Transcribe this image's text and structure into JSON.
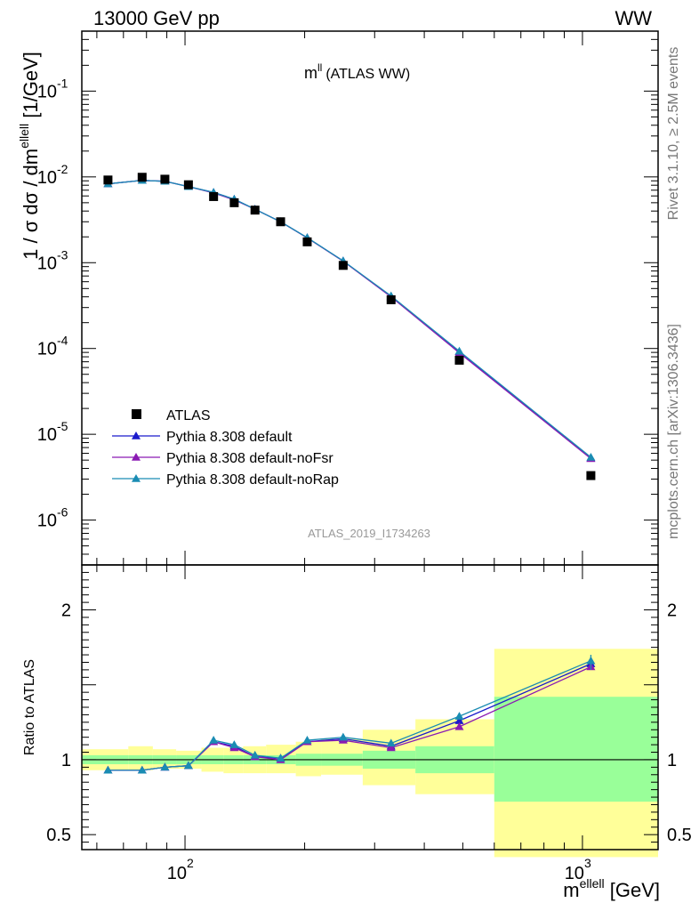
{
  "header": {
    "left": "13000 GeV pp",
    "right": "WW"
  },
  "side_text": {
    "rivet": "Rivet 3.1.10, ≥ 2.5M events",
    "mcplots": "mcplots.cern.ch [arXiv:1306.3436]"
  },
  "analysis_id": "ATLAS_2019_I1734263",
  "colors": {
    "data": "#000000",
    "default": "#1a1acc",
    "noFsr": "#8a1ab3",
    "noRap": "#1a8cb3",
    "band_inner": "#99ff99",
    "band_outer": "#ffff99"
  },
  "chart_data": [
    {
      "type": "scatter",
      "panel": "main",
      "title": "m^ll (ATLAS WW)",
      "title_main": "m",
      "title_sup": "ll",
      "title_rest": "(ATLAS WW)",
      "ylabel": "1 / σ  dσ / dm^{elleℓℓ} [1/GeV]",
      "ylabel_parts": {
        "a": "1 / σ  dσ / dm",
        "sup": "ellell",
        "b": " [1/GeV]"
      },
      "xscale": "log",
      "yscale": "log",
      "xlim": [
        55,
        1550
      ],
      "ylim": [
        3e-07,
        0.5
      ],
      "y_ticks": [
        {
          "value": 1e-06,
          "base": "10",
          "exp": "-6"
        },
        {
          "value": 1e-05,
          "base": "10",
          "exp": "-5"
        },
        {
          "value": 0.0001,
          "base": "10",
          "exp": "-4"
        },
        {
          "value": 0.001,
          "base": "10",
          "exp": "-3"
        },
        {
          "value": 0.01,
          "base": "10",
          "exp": "-2"
        },
        {
          "value": 0.1,
          "base": "10",
          "exp": "-1"
        }
      ],
      "x": [
        64,
        78,
        89,
        102,
        118,
        133,
        150,
        174,
        203,
        250,
        330,
        490,
        1050
      ],
      "series": [
        {
          "name": "ATLAS",
          "marker": "square",
          "values": [
            0.0092,
            0.0099,
            0.0094,
            0.0081,
            0.0059,
            0.005,
            0.0041,
            0.003,
            0.00175,
            0.00093,
            0.00037,
            7.3e-05,
            3.3e-06
          ]
        },
        {
          "name": "Pythia 8.308 default",
          "marker": "triangle",
          "values": [
            0.0083,
            0.0091,
            0.0089,
            0.0077,
            0.0066,
            0.0055,
            0.0042,
            0.003,
            0.00195,
            0.00105,
            0.0004,
            9.2e-05,
            5.3e-06
          ]
        },
        {
          "name": "Pythia 8.308 default-noFsr",
          "marker": "triangle",
          "values": [
            0.0083,
            0.0091,
            0.0089,
            0.0077,
            0.0065,
            0.0054,
            0.0042,
            0.003,
            0.00195,
            0.00104,
            0.0004,
            8.9e-05,
            5.2e-06
          ]
        },
        {
          "name": "Pythia 8.308 default-noRap",
          "marker": "triangle",
          "values": [
            0.0083,
            0.0091,
            0.0089,
            0.0077,
            0.0066,
            0.0055,
            0.0042,
            0.003,
            0.00196,
            0.00105,
            0.00041,
            9.3e-05,
            5.4e-06
          ]
        }
      ],
      "legend": "top-left, lower-left region"
    },
    {
      "type": "line",
      "panel": "ratio",
      "ylabel": "Ratio to ATLAS",
      "xlabel": "m^{elleℓℓ} [GeV]",
      "xlabel_parts": {
        "a": "m",
        "sup": "ellell",
        "b": " [GeV]"
      },
      "xscale": "log",
      "xlim": [
        55,
        1550
      ],
      "ylim": [
        0.4,
        2.3
      ],
      "y_ticks": [
        {
          "value": 0.5,
          "label": "0.5"
        },
        {
          "value": 1,
          "label": "1"
        },
        {
          "value": 2,
          "label": "2"
        }
      ],
      "x_ticks": [
        {
          "value": 100,
          "base": "10",
          "exp": "2"
        },
        {
          "value": 1000,
          "base": "10",
          "exp": "3"
        }
      ],
      "x": [
        64,
        78,
        89,
        102,
        118,
        133,
        150,
        174,
        203,
        250,
        330,
        490,
        1050
      ],
      "series": [
        {
          "name": "Pythia 8.308 default",
          "values": [
            0.93,
            0.93,
            0.95,
            0.96,
            1.12,
            1.09,
            1.02,
            1.01,
            1.12,
            1.14,
            1.09,
            1.26,
            1.64
          ]
        },
        {
          "name": "Pythia 8.308 default-noFsr",
          "values": [
            0.93,
            0.93,
            0.95,
            0.96,
            1.12,
            1.08,
            1.02,
            1.0,
            1.12,
            1.13,
            1.08,
            1.22,
            1.62
          ]
        },
        {
          "name": "Pythia 8.308 default-noRap",
          "values": [
            0.93,
            0.93,
            0.95,
            0.96,
            1.13,
            1.1,
            1.03,
            1.01,
            1.13,
            1.15,
            1.11,
            1.29,
            1.66
          ]
        }
      ],
      "bands": [
        {
          "x0": 55,
          "x1": 72,
          "inner": [
            0.97,
            1.03
          ],
          "outer": [
            0.93,
            1.07
          ]
        },
        {
          "x0": 72,
          "x1": 83,
          "inner": [
            0.97,
            1.03
          ],
          "outer": [
            0.93,
            1.09
          ]
        },
        {
          "x0": 83,
          "x1": 95,
          "inner": [
            0.97,
            1.03
          ],
          "outer": [
            0.94,
            1.07
          ]
        },
        {
          "x0": 95,
          "x1": 110,
          "inner": [
            0.97,
            1.03
          ],
          "outer": [
            0.94,
            1.06
          ]
        },
        {
          "x0": 110,
          "x1": 125,
          "inner": [
            0.97,
            1.03
          ],
          "outer": [
            0.92,
            1.08
          ]
        },
        {
          "x0": 125,
          "x1": 140,
          "inner": [
            0.97,
            1.03
          ],
          "outer": [
            0.91,
            1.08
          ]
        },
        {
          "x0": 140,
          "x1": 160,
          "inner": [
            0.97,
            1.03
          ],
          "outer": [
            0.91,
            1.09
          ]
        },
        {
          "x0": 160,
          "x1": 190,
          "inner": [
            0.97,
            1.03
          ],
          "outer": [
            0.91,
            1.1
          ]
        },
        {
          "x0": 190,
          "x1": 220,
          "inner": [
            0.96,
            1.04
          ],
          "outer": [
            0.89,
            1.12
          ]
        },
        {
          "x0": 220,
          "x1": 280,
          "inner": [
            0.96,
            1.04
          ],
          "outer": [
            0.9,
            1.14
          ]
        },
        {
          "x0": 280,
          "x1": 380,
          "inner": [
            0.94,
            1.06
          ],
          "outer": [
            0.83,
            1.2
          ]
        },
        {
          "x0": 380,
          "x1": 600,
          "inner": [
            0.91,
            1.09
          ],
          "outer": [
            0.77,
            1.27
          ]
        },
        {
          "x0": 600,
          "x1": 1550,
          "inner": [
            0.72,
            1.42
          ],
          "outer": [
            0.35,
            1.74
          ]
        }
      ]
    }
  ]
}
